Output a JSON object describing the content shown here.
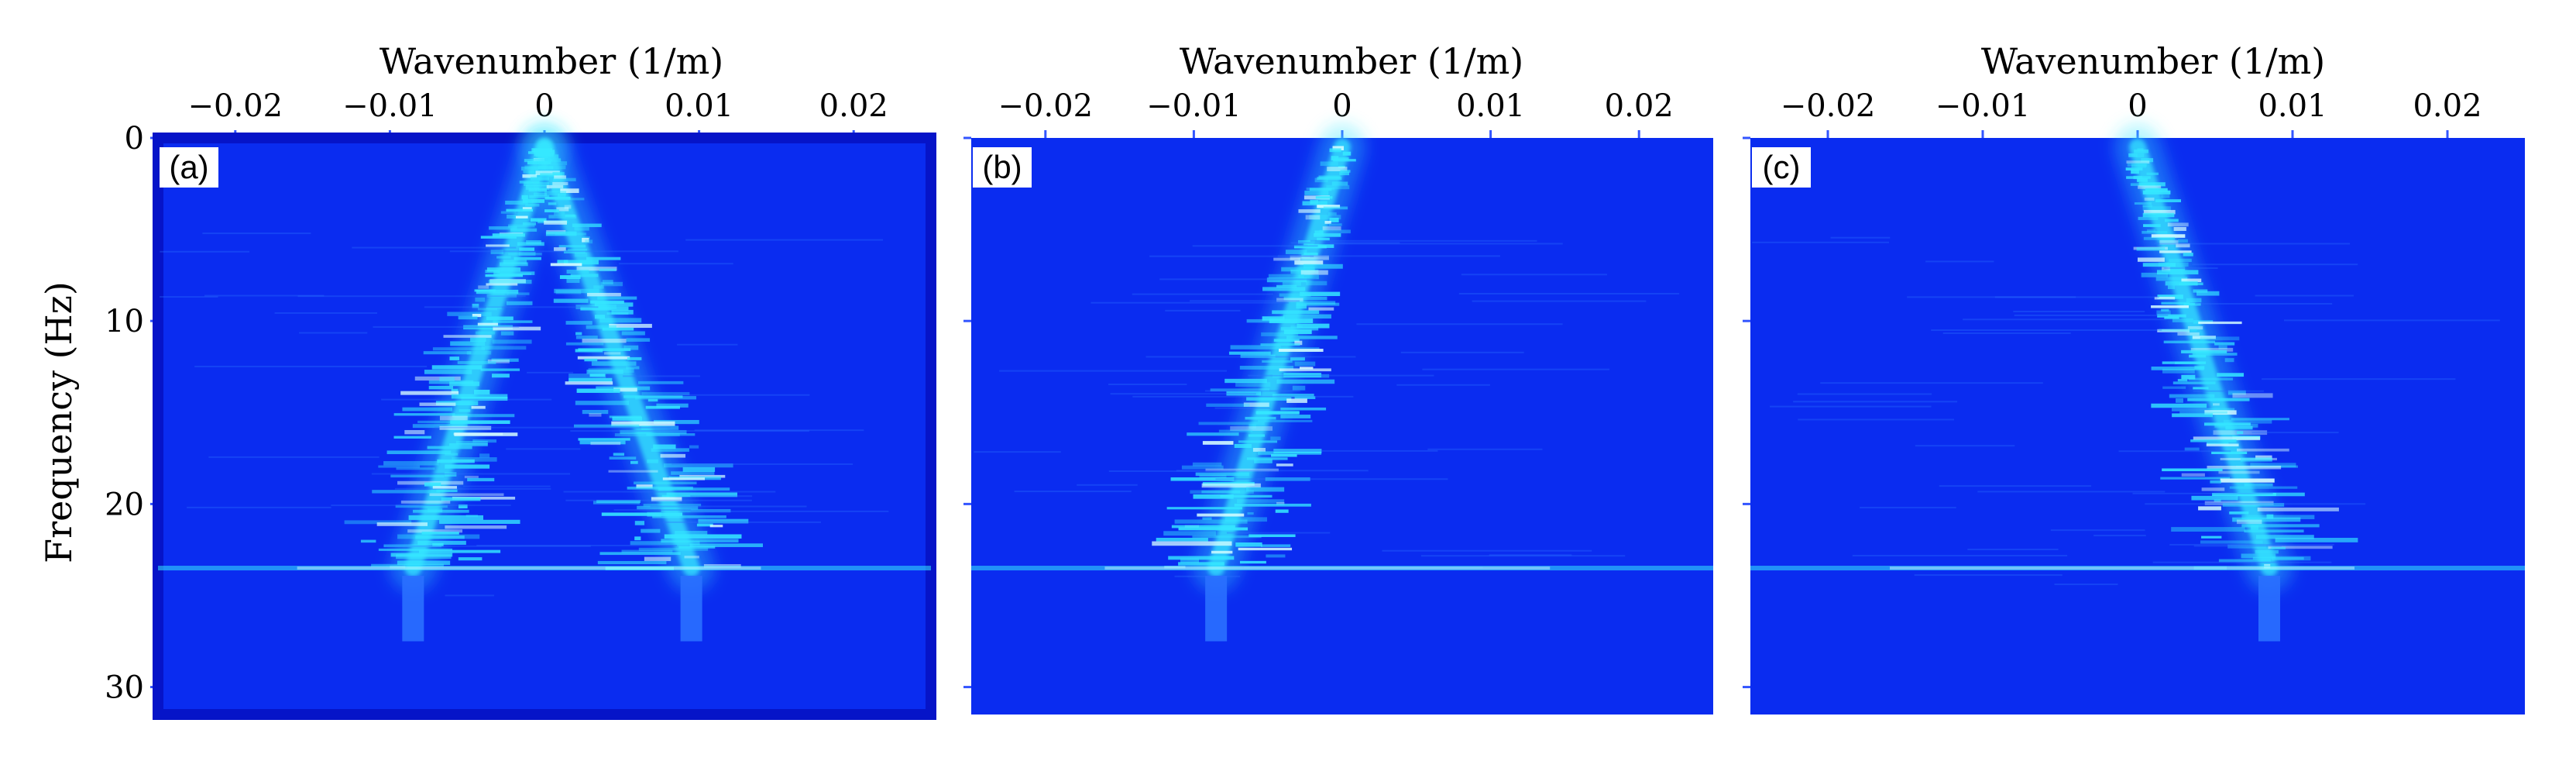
{
  "figure": {
    "colors": {
      "background": "#0a2cf0",
      "plot_border": "#0614c8",
      "signal": "#35e8ff",
      "signal_peak": "#d8ffff",
      "trace": "#2a70ff"
    }
  },
  "chart_data": [
    {
      "type": "heatmap",
      "panel_label": "(a)",
      "xlabel": "Wavenumber (1/m)",
      "ylabel": "Frequency (Hz)",
      "xlim": [
        -0.025,
        0.025
      ],
      "ylim": [
        0,
        31.5
      ],
      "y_inverted": true,
      "xticks": [
        -0.02,
        -0.01,
        0,
        0.01,
        0.02
      ],
      "xtick_labels": [
        "−0.02",
        "−0.01",
        "0",
        "0.01",
        "0.02"
      ],
      "yticks": [
        0,
        10,
        20,
        30
      ],
      "ytick_labels": [
        "0",
        "10",
        "20",
        "30"
      ],
      "ridges": [
        {
          "from": [
            0.0,
            0.5
          ],
          "to": [
            -0.0085,
            23.5
          ],
          "intensity": 1.0
        },
        {
          "from": [
            0.0,
            0.5
          ],
          "to": [
            0.0095,
            23.5
          ],
          "intensity": 1.0
        }
      ],
      "horizontal_line_hz": 23.5
    },
    {
      "type": "heatmap",
      "panel_label": "(b)",
      "xlabel": "Wavenumber (1/m)",
      "xlim": [
        -0.025,
        0.025
      ],
      "ylim": [
        0,
        31.5
      ],
      "y_inverted": true,
      "xticks": [
        -0.02,
        -0.01,
        0,
        0.01,
        0.02
      ],
      "xtick_labels": [
        "−0.02",
        "−0.01",
        "0",
        "0.01",
        "0.02"
      ],
      "yticks": [
        0,
        10,
        20,
        30
      ],
      "ridges": [
        {
          "from": [
            0.0,
            0.5
          ],
          "to": [
            -0.0085,
            23.5
          ],
          "intensity": 1.0
        }
      ],
      "horizontal_line_hz": 23.5
    },
    {
      "type": "heatmap",
      "panel_label": "(c)",
      "xlabel": "Wavenumber (1/m)",
      "xlim": [
        -0.025,
        0.025
      ],
      "ylim": [
        0,
        31.5
      ],
      "y_inverted": true,
      "xticks": [
        -0.02,
        -0.01,
        0,
        0.01,
        0.02
      ],
      "xtick_labels": [
        "−0.02",
        "−0.01",
        "0",
        "0.01",
        "0.02"
      ],
      "yticks": [
        0,
        10,
        20,
        30
      ],
      "ridges": [
        {
          "from": [
            0.0,
            0.5
          ],
          "to": [
            0.0085,
            23.5
          ],
          "intensity": 1.0
        }
      ],
      "horizontal_line_hz": 23.5
    }
  ]
}
